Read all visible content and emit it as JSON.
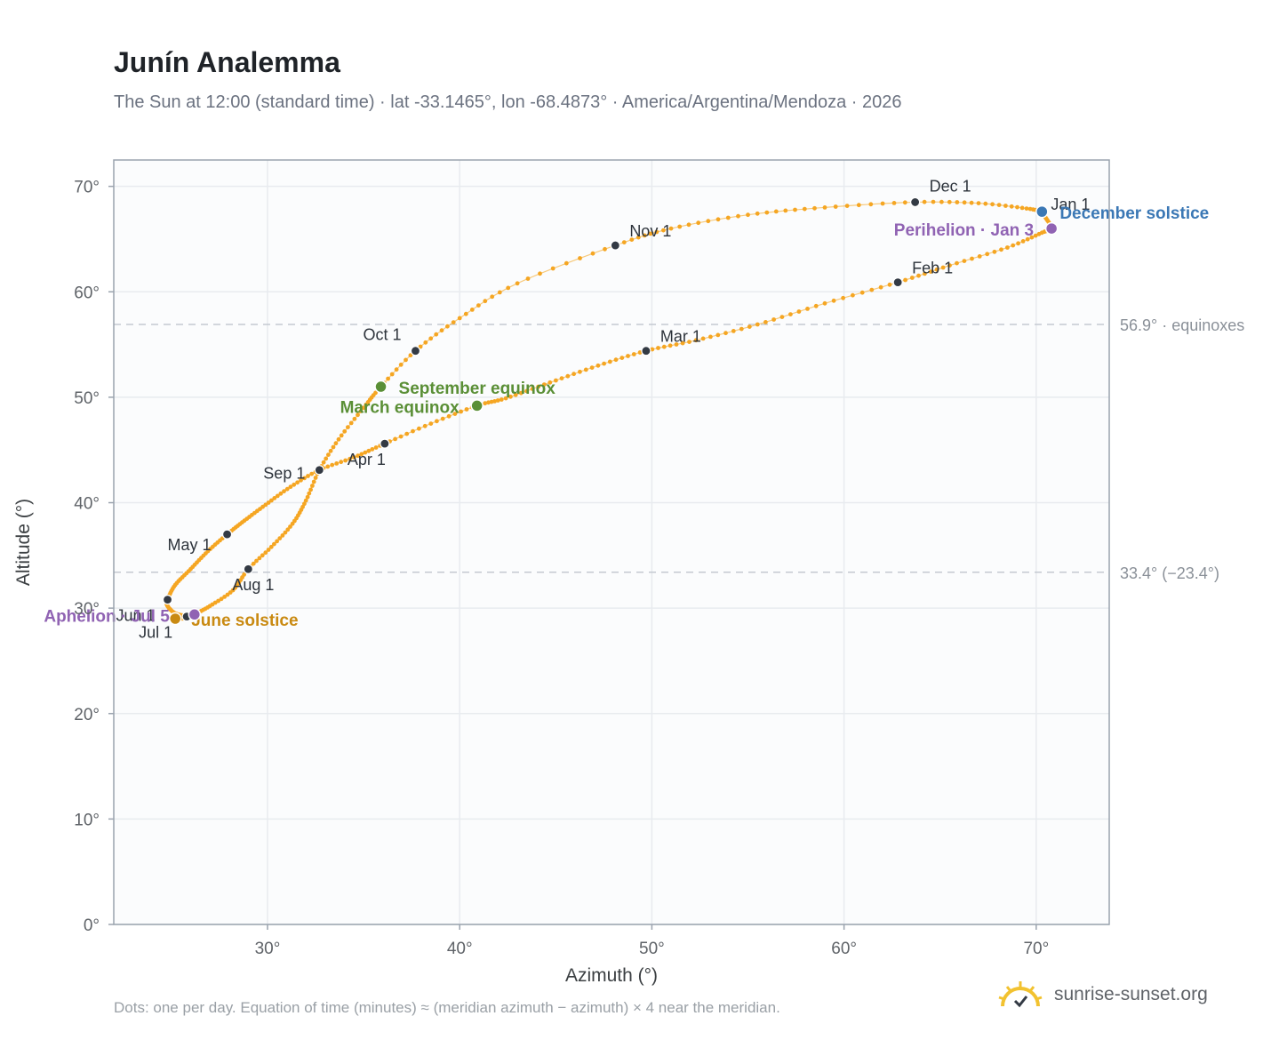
{
  "header": {
    "title": "Junín Analemma",
    "subtitle": "The Sun at 12:00 (standard time) · lat -33.1465°, lon -68.4873° · America/Argentina/Mendoza · 2026"
  },
  "footer": {
    "note": "Dots: one per day. Equation of time (minutes) ≈ (meridian azimuth − azimuth) × 4 near the meridian.",
    "brand": "sunrise-sunset.org"
  },
  "colors": {
    "curve": "#f5a623",
    "month_marker": "#333a44",
    "equinox": "#5a8f36",
    "june_solstice": "#c98a12",
    "december_solstice": "#3b78b5",
    "apsis": "#9063b3",
    "reference_line": "#c4c9d1",
    "plot_bg": "#fbfcfd",
    "grid": "#e8ebef",
    "axis": "#9aa3ae",
    "brand_sun": "#f2c230"
  },
  "chart_data": {
    "type": "scatter",
    "xlabel": "Azimuth (°)",
    "ylabel": "Altitude (°)",
    "xlim": [
      22,
      73.8
    ],
    "ylim": [
      0,
      72.5
    ],
    "x_ticks": [
      30,
      40,
      50,
      60,
      70
    ],
    "x_tick_labels": [
      "30°",
      "40°",
      "50°",
      "60°",
      "70°"
    ],
    "y_ticks": [
      0,
      10,
      20,
      30,
      40,
      50,
      60,
      70
    ],
    "y_tick_labels": [
      "0°",
      "10°",
      "20°",
      "30°",
      "40°",
      "50°",
      "60°",
      "70°"
    ],
    "grid": true,
    "series": [
      {
        "x": [
          70.3,
          70.5,
          70.8,
          70.3,
          68.5,
          65.5,
          62.8,
          59.0,
          55.5,
          52.3,
          49.7,
          47.2,
          44.7,
          42.4,
          40.9,
          38.5,
          36.1,
          34.5,
          32.7,
          31.2,
          29.9,
          28.8,
          27.9,
          26.9,
          26.0,
          25.2,
          24.8,
          24.8,
          25.2,
          25.8,
          25.4,
          25.9,
          26.2,
          27.0,
          28.2,
          29.0,
          30.2,
          31.3,
          32.0,
          32.7,
          33.7,
          35.0,
          35.9,
          37.7,
          40.0,
          43.0,
          48.1,
          51.0,
          55.0,
          59.0,
          63.7,
          67.0,
          69.5,
          70.3
        ],
        "y": [
          67.6,
          67.0,
          66.0,
          65.6,
          64.2,
          62.5,
          60.9,
          58.9,
          56.9,
          55.4,
          54.4,
          53.0,
          51.4,
          49.9,
          49.2,
          47.5,
          45.6,
          44.3,
          43.1,
          41.5,
          39.8,
          38.3,
          37.0,
          35.4,
          33.7,
          32.2,
          30.8,
          30.2,
          29.5,
          29.2,
          29.0,
          29.1,
          29.4,
          30.2,
          31.7,
          33.7,
          35.8,
          38.0,
          40.2,
          43.1,
          46.0,
          49.0,
          51.0,
          54.4,
          57.5,
          60.8,
          64.4,
          66.0,
          67.3,
          68.0,
          68.5,
          68.4,
          67.9,
          67.6
        ]
      }
    ],
    "month_markers": [
      {
        "label": "Jan 1",
        "x": 70.3,
        "y": 67.6
      },
      {
        "label": "Feb 1",
        "x": 62.8,
        "y": 60.9
      },
      {
        "label": "Mar 1",
        "x": 49.7,
        "y": 54.4
      },
      {
        "label": "Apr 1",
        "x": 36.1,
        "y": 45.6
      },
      {
        "label": "May 1",
        "x": 27.9,
        "y": 37.0
      },
      {
        "label": "Jun 1",
        "x": 24.8,
        "y": 30.8
      },
      {
        "label": "Jul 1",
        "x": 25.8,
        "y": 29.2
      },
      {
        "label": "Aug 1",
        "x": 29.0,
        "y": 33.7
      },
      {
        "label": "Sep 1",
        "x": 32.7,
        "y": 43.1
      },
      {
        "label": "Oct 1",
        "x": 37.7,
        "y": 54.4
      },
      {
        "label": "Nov 1",
        "x": 48.1,
        "y": 64.4
      },
      {
        "label": "Dec 1",
        "x": 63.7,
        "y": 68.5
      }
    ],
    "events": [
      {
        "label": "March equinox",
        "x": 40.9,
        "y": 49.2,
        "kind": "equinox"
      },
      {
        "label": "September equinox",
        "x": 35.9,
        "y": 51.0,
        "kind": "equinox"
      },
      {
        "label": "June solstice",
        "x": 25.2,
        "y": 29.0,
        "kind": "june_solstice"
      },
      {
        "label": "December solstice",
        "x": 70.3,
        "y": 67.6,
        "kind": "december_solstice"
      },
      {
        "label": "Aphelion · Jul 5",
        "x": 26.2,
        "y": 29.4,
        "kind": "apsis"
      },
      {
        "label": "Perihelion · Jan 3",
        "x": 70.8,
        "y": 66.0,
        "kind": "apsis"
      }
    ],
    "reference_lines": [
      {
        "y": 56.9,
        "label": "56.9° · equinoxes"
      },
      {
        "y": 33.4,
        "label": "33.4° (−23.4°)"
      }
    ]
  }
}
